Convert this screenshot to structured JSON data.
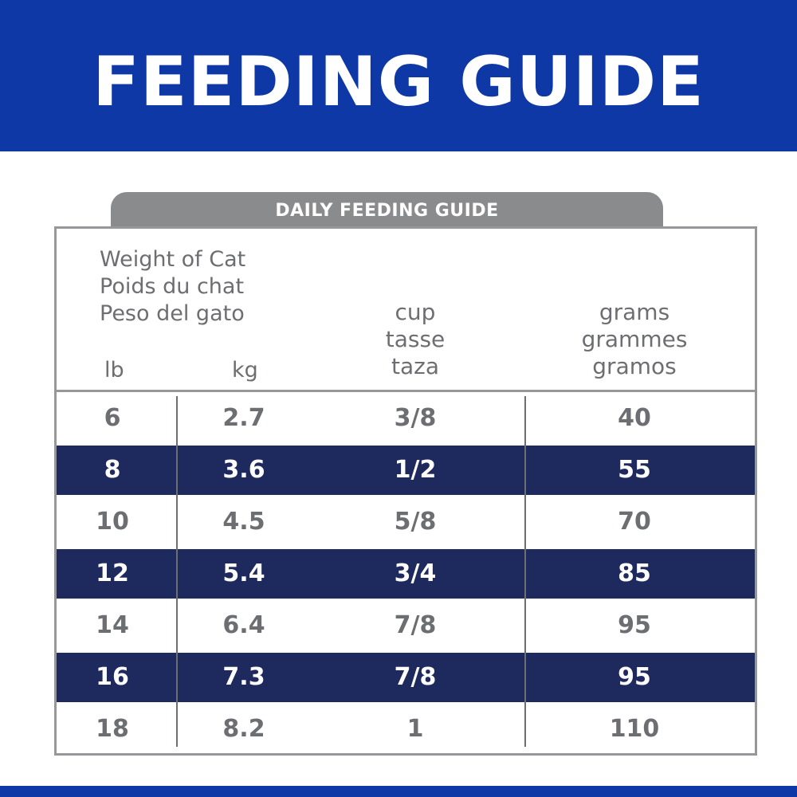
{
  "header": {
    "title": "FEEDING GUIDE"
  },
  "tab": {
    "label": "DAILY FEEDING GUIDE"
  },
  "columns": {
    "weight": [
      "Weight of Cat",
      "Poids du chat",
      "Peso del gato"
    ],
    "lb": "lb",
    "kg": "kg",
    "cup": [
      "cup",
      "tasse",
      "taza"
    ],
    "grams": [
      "grams",
      "grammes",
      "gramos"
    ]
  },
  "rows": [
    {
      "lb": "6",
      "kg": "2.7",
      "cup": "3/8",
      "grams": "40"
    },
    {
      "lb": "8",
      "kg": "3.6",
      "cup": "1/2",
      "grams": "55"
    },
    {
      "lb": "10",
      "kg": "4.5",
      "cup": "5/8",
      "grams": "70"
    },
    {
      "lb": "12",
      "kg": "5.4",
      "cup": "3/4",
      "grams": "85"
    },
    {
      "lb": "14",
      "kg": "6.4",
      "cup": "7/8",
      "grams": "95"
    },
    {
      "lb": "16",
      "kg": "7.3",
      "cup": "7/8",
      "grams": "95"
    },
    {
      "lb": "18",
      "kg": "8.2",
      "cup": "1",
      "grams": "110"
    }
  ],
  "colors": {
    "brand_blue": "#0d38a6",
    "row_dark": "#1e2a5e",
    "text_gray": "#6d6e71",
    "border_gray": "#96979a"
  }
}
